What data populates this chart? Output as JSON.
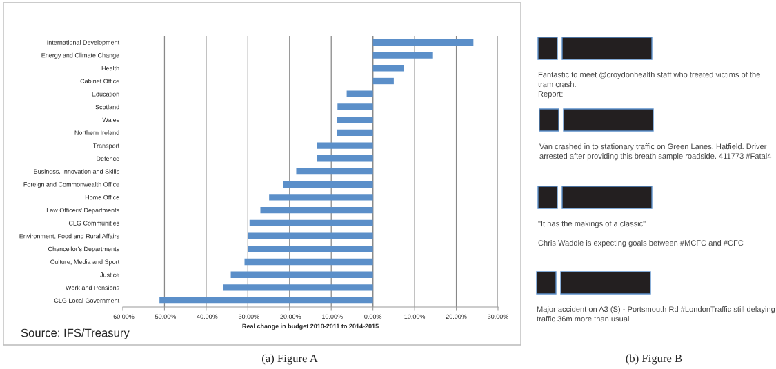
{
  "chart_data": [
    {
      "type": "bar",
      "orientation": "horizontal",
      "xlabel": "Real change in budget 2010-2011 to 2014-2015",
      "categories": [
        "International Development",
        "Energy and Climate Change",
        "Health",
        "Cabinet Office",
        "Education",
        "Scotland",
        "Wales",
        "Northern Ireland",
        "Transport",
        "Defence",
        "Business, Innovation and Skills",
        "Foreign and Commonwealth Office",
        "Home Office",
        "Law Officers' Departments",
        "CLG Communities",
        "Environment, Food and Rural Affairs",
        "Chancellor's Departments",
        "Culture, Media and Sport",
        "Justice",
        "Work and Pensions",
        "CLG Local Government"
      ],
      "values": [
        24.1,
        14.4,
        7.4,
        5.0,
        -6.3,
        -8.5,
        -8.7,
        -8.7,
        -13.4,
        -13.4,
        -18.4,
        -21.6,
        -24.9,
        -27.0,
        -29.6,
        -29.9,
        -29.9,
        -30.8,
        -34.1,
        -35.9,
        -51.2
      ],
      "color": "#5b8fc9",
      "xlim": [
        -60,
        30
      ],
      "xticks": [
        {
          "value": -60,
          "label": "-60.00%"
        },
        {
          "value": -50,
          "label": "-50.00%"
        },
        {
          "value": -40,
          "label": "-40.00%"
        },
        {
          "value": -30,
          "label": "-30.00%"
        },
        {
          "value": -20,
          "label": "-20.00%"
        },
        {
          "value": -10,
          "label": "-10.00%"
        },
        {
          "value": 0,
          "label": "0.00%"
        },
        {
          "value": 10,
          "label": "10.00%"
        },
        {
          "value": 20,
          "label": "20.00%"
        },
        {
          "value": 30,
          "label": "30.00%"
        }
      ],
      "grid": "x",
      "annotations": [
        "Source: IFS/Treasury",
        "(a) Figure A"
      ]
    },
    {
      "type": "other",
      "annotations": [
        "Fantastic to meet @croydonhealth staff who treated victims of the tram crash.\nReport:",
        "Van crashed in to stationary traffic on Green Lanes, Hatfield. Driver arrested after providing this breath sample roadside. 411773 #Fatal4",
        "\"It has the makings of a classic\"\n\nChris Waddle is expecting goals between #MCFC and #CFC",
        "Major accident on A3 (S) - Portsmouth Rd #LondonTraffic still delaying traffic 36m more than usual",
        "(b) Figure B"
      ]
    }
  ]
}
